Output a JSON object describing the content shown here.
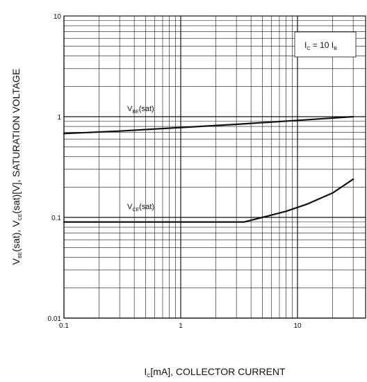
{
  "chart_data": {
    "type": "line",
    "title": "",
    "xlabel": {
      "main": "I",
      "sub": "C",
      "rest": "[mA], COLLECTOR CURRENT"
    },
    "ylabel": {
      "p1": "V",
      "s1": "BE",
      "p2": "(sat), V",
      "s2": "CE",
      "p3": "(sat)[V], SATURATION VOLTAGE"
    },
    "xscale": "log",
    "yscale": "log",
    "xlim": [
      0.1,
      30
    ],
    "ylim": [
      0.01,
      10
    ],
    "grid": true,
    "x_ticks": [
      "0.1",
      "1",
      "10"
    ],
    "y_ticks": [
      "0.01",
      "0.1",
      "1",
      "10"
    ],
    "annotation": {
      "p1": "I",
      "s1": "C",
      "p2": " = 10 I",
      "s2": "B"
    },
    "series": [
      {
        "name": {
          "p": "V",
          "s": "BE",
          "r": "(sat)"
        },
        "x": [
          0.1,
          0.3,
          1,
          3,
          10,
          30
        ],
        "y": [
          0.68,
          0.72,
          0.78,
          0.84,
          0.92,
          1.0
        ]
      },
      {
        "name": {
          "p": "V",
          "s": "CE",
          "r": "(sat)"
        },
        "x": [
          0.1,
          1,
          3.5,
          5,
          8,
          12,
          20,
          30
        ],
        "y": [
          0.09,
          0.09,
          0.09,
          0.1,
          0.115,
          0.135,
          0.175,
          0.24
        ]
      }
    ]
  }
}
